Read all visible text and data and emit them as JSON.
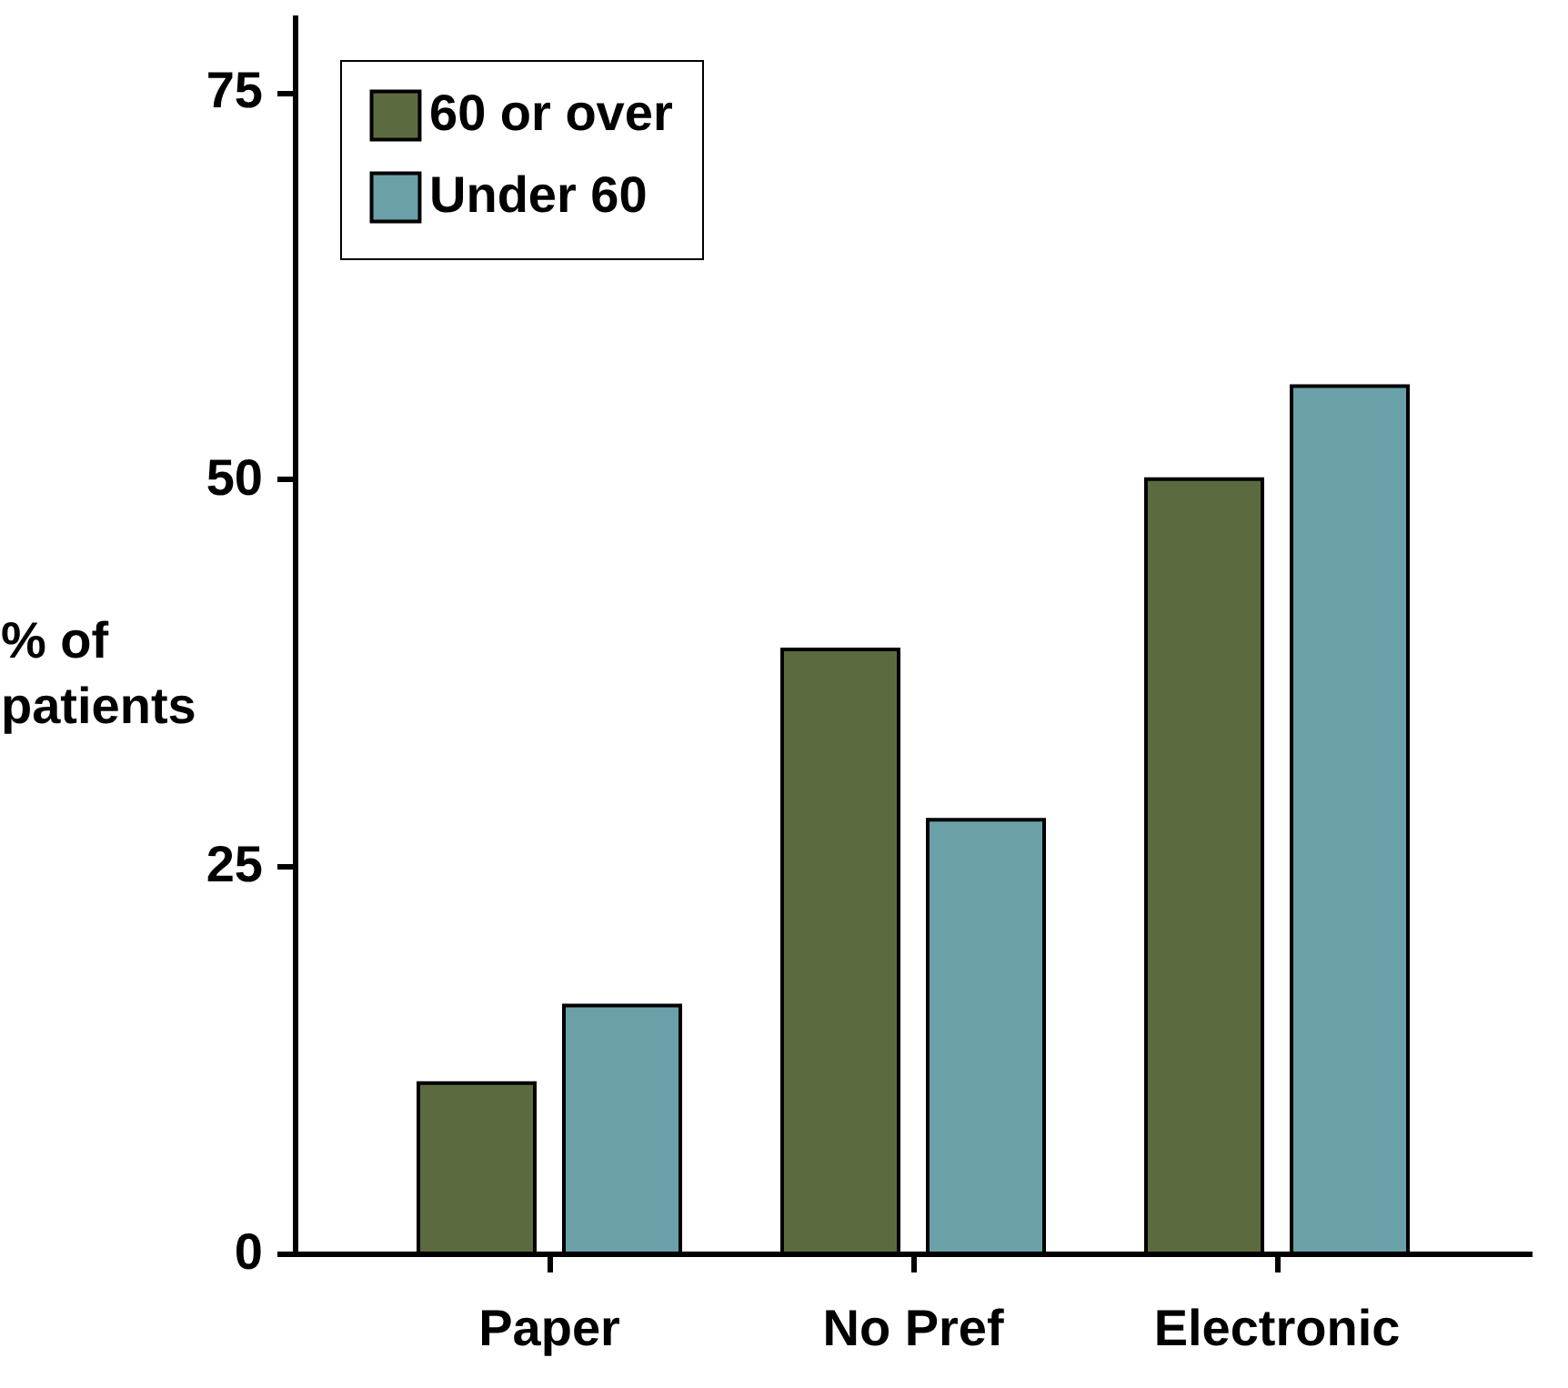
{
  "chart_data": {
    "type": "bar",
    "ylabel": "% of patients",
    "categories": [
      "Paper",
      "No Pref",
      "Electronic"
    ],
    "series": [
      {
        "name": "60 or over",
        "color": "#5c6b3f",
        "values": [
          11,
          39,
          50
        ]
      },
      {
        "name": "Under 60",
        "color": "#6aa0a8",
        "values": [
          16,
          28,
          56
        ]
      }
    ],
    "ylim": [
      0,
      80
    ],
    "yticks": [
      0,
      25,
      50,
      75
    ],
    "grid": false,
    "legend": "top left"
  }
}
